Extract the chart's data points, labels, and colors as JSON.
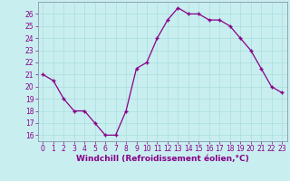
{
  "x": [
    0,
    1,
    2,
    3,
    4,
    5,
    6,
    7,
    8,
    9,
    10,
    11,
    12,
    13,
    14,
    15,
    16,
    17,
    18,
    19,
    20,
    21,
    22,
    23
  ],
  "y": [
    21,
    20.5,
    19,
    18,
    18,
    17,
    16,
    16,
    18,
    21.5,
    22,
    24,
    25.5,
    26.5,
    26,
    26,
    25.5,
    25.5,
    25,
    24,
    23,
    21.5,
    20,
    19.5
  ],
  "line_color": "#880088",
  "marker": "+",
  "bg_color": "#c8eef0",
  "grid_color": "#aadddd",
  "xlabel": "Windchill (Refroidissement éolien,°C)",
  "xlabel_color": "#880088",
  "xlabel_fontsize": 6.5,
  "ylim": [
    15.5,
    27.0
  ],
  "xlim": [
    -0.5,
    23.5
  ],
  "yticks": [
    16,
    17,
    18,
    19,
    20,
    21,
    22,
    23,
    24,
    25,
    26
  ],
  "xticks": [
    0,
    1,
    2,
    3,
    4,
    5,
    6,
    7,
    8,
    9,
    10,
    11,
    12,
    13,
    14,
    15,
    16,
    17,
    18,
    19,
    20,
    21,
    22,
    23
  ],
  "tick_label_fontsize": 5.5,
  "tick_color": "#880088",
  "spine_color": "#8899aa",
  "markersize": 3,
  "linewidth": 0.9
}
